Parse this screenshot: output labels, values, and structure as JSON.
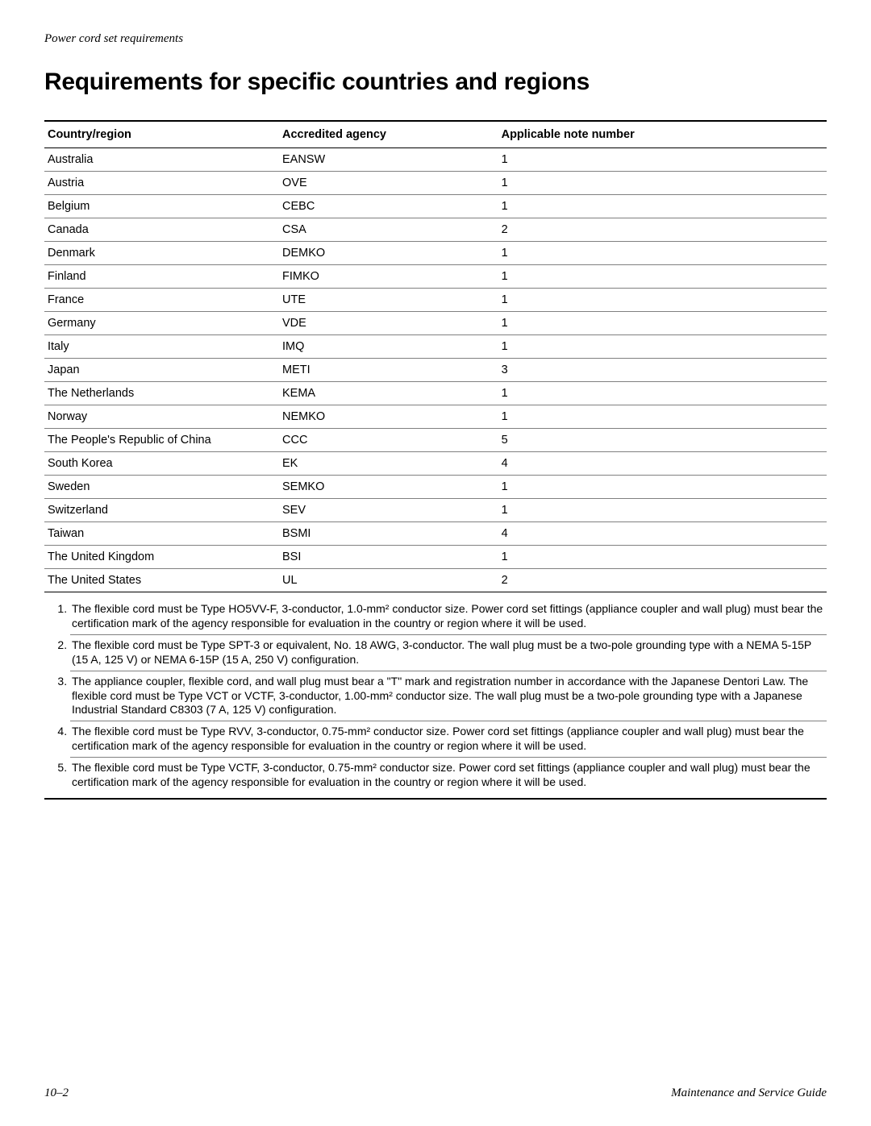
{
  "header": {
    "running": "Power cord set requirements"
  },
  "heading": "Requirements for specific countries and regions",
  "table": {
    "columns": [
      "Country/region",
      "Accredited agency",
      "Applicable note number"
    ],
    "rows": [
      [
        "Australia",
        "EANSW",
        "1"
      ],
      [
        "Austria",
        "OVE",
        "1"
      ],
      [
        "Belgium",
        "CEBC",
        "1"
      ],
      [
        "Canada",
        "CSA",
        "2"
      ],
      [
        "Denmark",
        "DEMKO",
        "1"
      ],
      [
        "Finland",
        "FIMKO",
        "1"
      ],
      [
        "France",
        "UTE",
        "1"
      ],
      [
        "Germany",
        "VDE",
        "1"
      ],
      [
        "Italy",
        "IMQ",
        "1"
      ],
      [
        "Japan",
        "METI",
        "3"
      ],
      [
        "The Netherlands",
        "KEMA",
        "1"
      ],
      [
        "Norway",
        "NEMKO",
        "1"
      ],
      [
        "The People's Republic of China",
        "CCC",
        "5"
      ],
      [
        "South Korea",
        "EK",
        "4"
      ],
      [
        "Sweden",
        "SEMKO",
        "1"
      ],
      [
        "Switzerland",
        "SEV",
        "1"
      ],
      [
        "Taiwan",
        "BSMI",
        "4"
      ],
      [
        "The United Kingdom",
        "BSI",
        "1"
      ],
      [
        "The United States",
        "UL",
        "2"
      ]
    ]
  },
  "notes": [
    "The flexible cord must be Type HO5VV-F, 3-conductor, 1.0-mm² conductor size. Power cord set fittings (appliance coupler and wall plug) must bear the certification mark of the agency responsible for evaluation in the country or region where it will be used.",
    "The flexible cord must be Type SPT-3 or equivalent, No. 18 AWG, 3-conductor. The wall plug must be a two-pole grounding type with a NEMA 5-15P (15 A, 125 V) or NEMA 6-15P (15 A, 250 V) configuration.",
    "The appliance coupler, flexible cord, and wall plug must bear a \"T\" mark and registration number in accordance with the Japanese Dentori Law. The flexible cord must be Type VCT or VCTF, 3-conductor, 1.00-mm² conductor size. The wall plug must be a two-pole grounding type with a Japanese Industrial Standard C8303 (7 A, 125 V) configuration.",
    "The flexible cord must be Type RVV, 3-conductor, 0.75-mm² conductor size. Power cord set fittings (appliance coupler and wall plug) must bear the certification mark of the agency responsible for evaluation in the country or region where it will be used.",
    "The flexible cord must be Type VCTF, 3-conductor, 0.75-mm² conductor size. Power cord set fittings (appliance coupler and wall plug) must bear the certification mark of the agency responsible for evaluation in the country or region where it will be used."
  ],
  "footer": {
    "left": "10–2",
    "right": "Maintenance and Service Guide"
  }
}
